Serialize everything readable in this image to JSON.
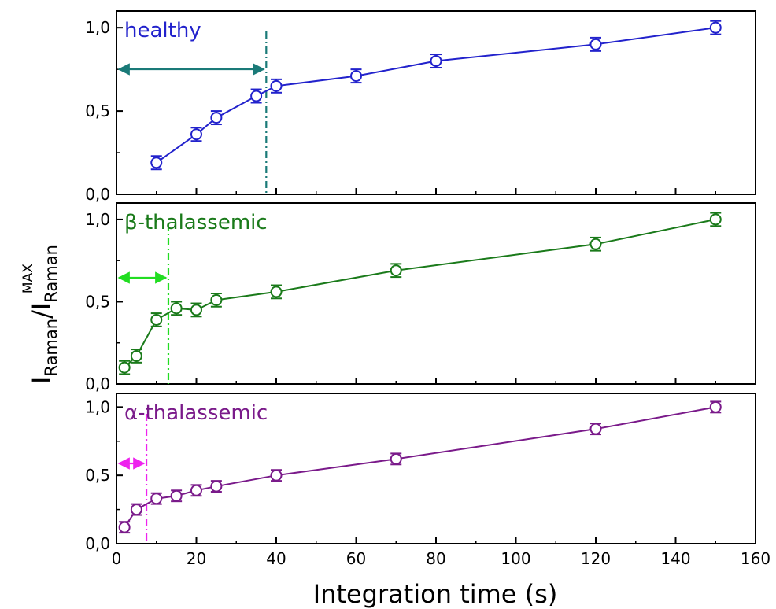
{
  "chart_data": {
    "type": "line",
    "xlabel": "Integration time (s)",
    "ylabel_main": "I",
    "ylabel_sub1": "Raman",
    "ylabel_slash": "/I",
    "ylabel_sub2": "Raman",
    "ylabel_sup": "MAX",
    "xlim": [
      0,
      160
    ],
    "xticks": [
      "0",
      "20",
      "40",
      "60",
      "80",
      "100",
      "120",
      "140",
      "160"
    ],
    "ylim": [
      0,
      1.1
    ],
    "yticks": [
      "0,0",
      "0,5",
      "1,0"
    ],
    "grid": false,
    "panels": [
      {
        "label": "healthy",
        "color": "#2222cc",
        "arrow_color": "#1a7a78",
        "threshold_x": 37.5,
        "x": [
          10,
          20,
          25,
          35,
          40,
          60,
          80,
          120,
          150
        ],
        "y": [
          0.19,
          0.36,
          0.46,
          0.59,
          0.65,
          0.71,
          0.8,
          0.9,
          1.0
        ],
        "err": [
          0.04,
          0.04,
          0.04,
          0.04,
          0.04,
          0.04,
          0.04,
          0.04,
          0.04
        ]
      },
      {
        "label": "β-thalassemic",
        "color": "#1a7a1a",
        "arrow_color": "#22dd22",
        "threshold_x": 13,
        "x": [
          2,
          5,
          10,
          15,
          20,
          25,
          40,
          70,
          120,
          150
        ],
        "y": [
          0.1,
          0.17,
          0.39,
          0.46,
          0.45,
          0.51,
          0.56,
          0.69,
          0.85,
          1.0
        ],
        "err": [
          0.04,
          0.04,
          0.04,
          0.04,
          0.04,
          0.04,
          0.04,
          0.04,
          0.04,
          0.04
        ]
      },
      {
        "label": "α-thalassemic",
        "color": "#7a1a8a",
        "arrow_color": "#ee22ee",
        "threshold_x": 7.5,
        "x": [
          2,
          5,
          10,
          15,
          20,
          25,
          40,
          70,
          120,
          150
        ],
        "y": [
          0.12,
          0.25,
          0.33,
          0.35,
          0.39,
          0.42,
          0.5,
          0.62,
          0.84,
          1.0
        ],
        "err": [
          0.04,
          0.04,
          0.04,
          0.04,
          0.04,
          0.04,
          0.04,
          0.04,
          0.04,
          0.04
        ]
      }
    ]
  }
}
